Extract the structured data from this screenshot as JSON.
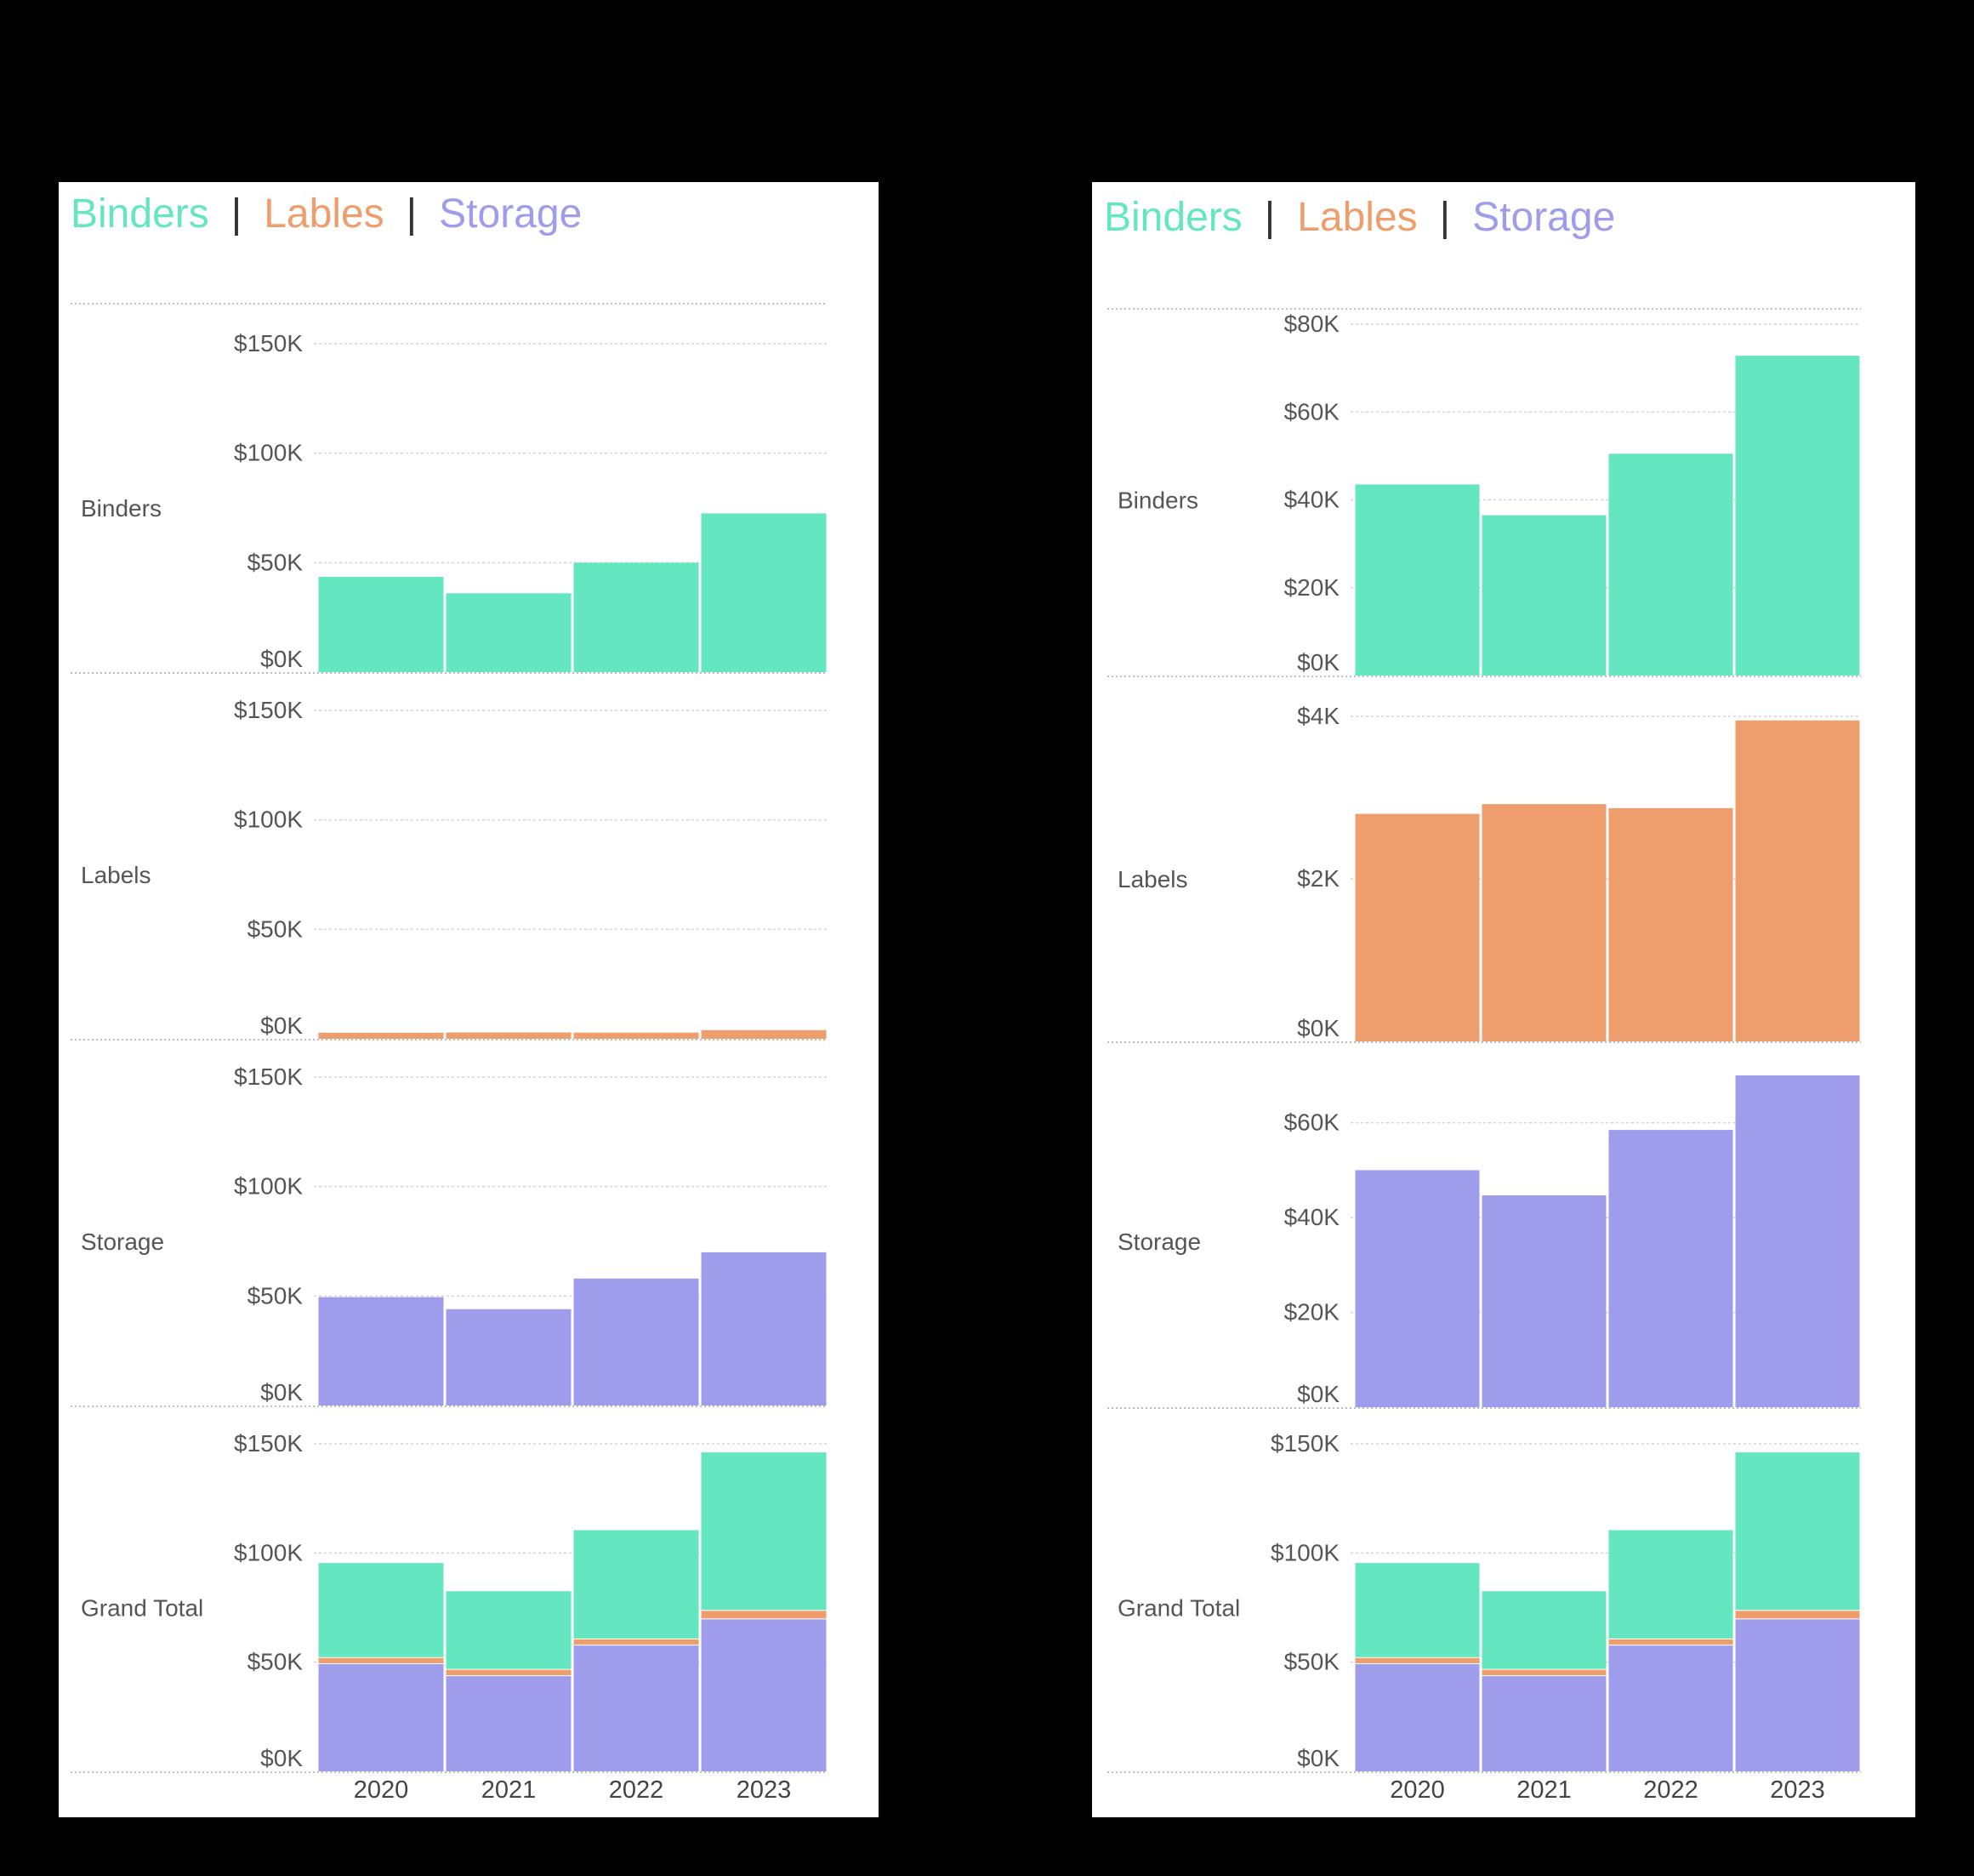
{
  "colors": {
    "binders": "#64e6c1",
    "labels": "#ee9e6c",
    "storage": "#9f9cec",
    "separator": "#333333"
  },
  "legend": {
    "binders": "Binders",
    "separator": "|",
    "lables": "Lables",
    "storage": "Storage"
  },
  "chart_data": [
    {
      "type": "bar",
      "layout": "small-multiples, shared y axis",
      "categories": [
        "2020",
        "2021",
        "2022",
        "2023"
      ],
      "rows": [
        {
          "label": "Binders",
          "ylim": [
            0,
            150000
          ],
          "ticks": [
            {
              "v": 0,
              "t": "$0K"
            },
            {
              "v": 50000,
              "t": "$50K"
            },
            {
              "v": 100000,
              "t": "$100K"
            },
            {
              "v": 150000,
              "t": "$150K"
            }
          ],
          "segments": [
            {
              "key": "binders",
              "values": [
                43500,
                36000,
                50000,
                72500
              ]
            }
          ]
        },
        {
          "label": "Labels",
          "ylim": [
            0,
            150000
          ],
          "ticks": [
            {
              "v": 0,
              "t": "$0K"
            },
            {
              "v": 50000,
              "t": "$50K"
            },
            {
              "v": 100000,
              "t": "$100K"
            },
            {
              "v": 150000,
              "t": "$150K"
            }
          ],
          "segments": [
            {
              "key": "labels",
              "values": [
                2800,
                2900,
                2850,
                3950
              ]
            }
          ]
        },
        {
          "label": "Storage",
          "ylim": [
            0,
            150000
          ],
          "ticks": [
            {
              "v": 0,
              "t": "$0K"
            },
            {
              "v": 50000,
              "t": "$50K"
            },
            {
              "v": 100000,
              "t": "$100K"
            },
            {
              "v": 150000,
              "t": "$150K"
            }
          ],
          "segments": [
            {
              "key": "storage",
              "values": [
                49500,
                44000,
                58000,
                70000
              ]
            }
          ]
        },
        {
          "label": "Grand Total",
          "ylim": [
            0,
            150000
          ],
          "ticks": [
            {
              "v": 0,
              "t": "$0K"
            },
            {
              "v": 50000,
              "t": "$50K"
            },
            {
              "v": 100000,
              "t": "$100K"
            },
            {
              "v": 150000,
              "t": "$150K"
            }
          ],
          "segments": [
            {
              "key": "storage",
              "values": [
                49500,
                44000,
                58000,
                70000
              ]
            },
            {
              "key": "labels",
              "values": [
                2800,
                2900,
                2850,
                3950
              ]
            },
            {
              "key": "binders",
              "values": [
                43500,
                36000,
                50000,
                72500
              ]
            }
          ]
        }
      ]
    },
    {
      "type": "bar",
      "layout": "small-multiples, independent y axes",
      "categories": [
        "2020",
        "2021",
        "2022",
        "2023"
      ],
      "rows": [
        {
          "label": "Binders",
          "ylim": [
            0,
            80000
          ],
          "ticks": [
            {
              "v": 0,
              "t": "$0K"
            },
            {
              "v": 20000,
              "t": "$20K"
            },
            {
              "v": 40000,
              "t": "$40K"
            },
            {
              "v": 60000,
              "t": "$60K"
            },
            {
              "v": 80000,
              "t": "$80K"
            }
          ],
          "segments": [
            {
              "key": "binders",
              "values": [
                43500,
                36500,
                50500,
                72800
              ]
            }
          ]
        },
        {
          "label": "Labels",
          "ylim": [
            0,
            4000
          ],
          "ticks": [
            {
              "v": 0,
              "t": "$0K"
            },
            {
              "v": 2000,
              "t": "$2K"
            },
            {
              "v": 4000,
              "t": "$4K"
            }
          ],
          "segments": [
            {
              "key": "labels",
              "values": [
                2800,
                2920,
                2870,
                3950
              ]
            }
          ]
        },
        {
          "label": "Storage",
          "ylim": [
            0,
            70000
          ],
          "ticks": [
            {
              "v": 0,
              "t": "$0K"
            },
            {
              "v": 20000,
              "t": "$20K"
            },
            {
              "v": 40000,
              "t": "$40K"
            },
            {
              "v": 60000,
              "t": "$60K"
            }
          ],
          "segments": [
            {
              "key": "storage",
              "values": [
                50000,
                44700,
                58500,
                70000
              ]
            }
          ]
        },
        {
          "label": "Grand Total",
          "ylim": [
            0,
            150000
          ],
          "ticks": [
            {
              "v": 0,
              "t": "$0K"
            },
            {
              "v": 50000,
              "t": "$50K"
            },
            {
              "v": 100000,
              "t": "$100K"
            },
            {
              "v": 150000,
              "t": "$150K"
            }
          ],
          "segments": [
            {
              "key": "storage",
              "values": [
                49500,
                44000,
                58000,
                70000
              ]
            },
            {
              "key": "labels",
              "values": [
                2800,
                2900,
                2850,
                3950
              ]
            },
            {
              "key": "binders",
              "values": [
                43500,
                36000,
                50000,
                72500
              ]
            }
          ]
        }
      ]
    }
  ]
}
